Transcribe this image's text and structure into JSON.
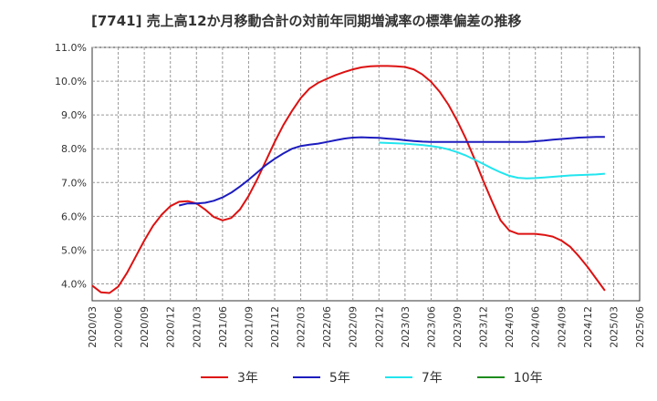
{
  "title": "[7741]  売上高12か月移動合計の対前年同期増減率の標準偏差の推移",
  "chart_data": {
    "type": "line",
    "title": "[7741]  売上高12か月移動合計の対前年同期増減率の標準偏差の推移",
    "xlabel": "",
    "ylabel": "",
    "ylim": [
      3.5,
      11.0
    ],
    "grid": true,
    "legend_position": "bottom",
    "y_ticks": [
      4.0,
      5.0,
      6.0,
      7.0,
      8.0,
      9.0,
      10.0,
      11.0
    ],
    "y_tick_labels": [
      "4.0%",
      "5.0%",
      "6.0%",
      "7.0%",
      "8.0%",
      "9.0%",
      "10.0%",
      "11.0%"
    ],
    "x_ticks": [
      "2020/03",
      "2020/06",
      "2020/09",
      "2020/12",
      "2021/03",
      "2021/06",
      "2021/09",
      "2021/12",
      "2022/03",
      "2022/06",
      "2022/09",
      "2022/12",
      "2023/03",
      "2023/06",
      "2023/09",
      "2023/12",
      "2024/03",
      "2024/06",
      "2024/09",
      "2024/12",
      "2025/03",
      "2025/06"
    ],
    "series": [
      {
        "name": "3年",
        "color": "#dd1111",
        "points": [
          [
            "2020/03",
            3.95
          ],
          [
            "2020/04",
            3.75
          ],
          [
            "2020/05",
            3.73
          ],
          [
            "2020/06",
            3.92
          ],
          [
            "2020/07",
            4.32
          ],
          [
            "2020/08",
            4.8
          ],
          [
            "2020/09",
            5.28
          ],
          [
            "2020/10",
            5.72
          ],
          [
            "2020/11",
            6.05
          ],
          [
            "2020/12",
            6.3
          ],
          [
            "2021/01",
            6.43
          ],
          [
            "2021/02",
            6.45
          ],
          [
            "2021/03",
            6.38
          ],
          [
            "2021/04",
            6.2
          ],
          [
            "2021/05",
            5.98
          ],
          [
            "2021/06",
            5.88
          ],
          [
            "2021/07",
            5.95
          ],
          [
            "2021/08",
            6.2
          ],
          [
            "2021/09",
            6.6
          ],
          [
            "2021/10",
            7.1
          ],
          [
            "2021/11",
            7.65
          ],
          [
            "2021/12",
            8.2
          ],
          [
            "2022/01",
            8.7
          ],
          [
            "2022/02",
            9.12
          ],
          [
            "2022/03",
            9.5
          ],
          [
            "2022/04",
            9.78
          ],
          [
            "2022/05",
            9.95
          ],
          [
            "2022/06",
            10.07
          ],
          [
            "2022/07",
            10.18
          ],
          [
            "2022/08",
            10.27
          ],
          [
            "2022/09",
            10.35
          ],
          [
            "2022/10",
            10.41
          ],
          [
            "2022/11",
            10.44
          ],
          [
            "2022/12",
            10.45
          ],
          [
            "2023/01",
            10.45
          ],
          [
            "2023/02",
            10.44
          ],
          [
            "2023/03",
            10.42
          ],
          [
            "2023/04",
            10.35
          ],
          [
            "2023/05",
            10.2
          ],
          [
            "2023/06",
            9.98
          ],
          [
            "2023/07",
            9.68
          ],
          [
            "2023/08",
            9.3
          ],
          [
            "2023/09",
            8.83
          ],
          [
            "2023/10",
            8.3
          ],
          [
            "2023/11",
            7.7
          ],
          [
            "2023/12",
            7.05
          ],
          [
            "2024/01",
            6.45
          ],
          [
            "2024/02",
            5.88
          ],
          [
            "2024/03",
            5.58
          ],
          [
            "2024/04",
            5.48
          ],
          [
            "2024/05",
            5.48
          ],
          [
            "2024/06",
            5.48
          ],
          [
            "2024/07",
            5.45
          ],
          [
            "2024/08",
            5.4
          ],
          [
            "2024/09",
            5.28
          ],
          [
            "2024/10",
            5.1
          ],
          [
            "2024/11",
            4.82
          ],
          [
            "2024/12",
            4.5
          ],
          [
            "2025/01",
            4.15
          ],
          [
            "2025/02",
            3.8
          ]
        ]
      },
      {
        "name": "5年",
        "color": "#1c1cbf",
        "points": [
          [
            "2021/01",
            6.32
          ],
          [
            "2021/02",
            6.38
          ],
          [
            "2021/03",
            6.38
          ],
          [
            "2021/04",
            6.4
          ],
          [
            "2021/05",
            6.46
          ],
          [
            "2021/06",
            6.56
          ],
          [
            "2021/07",
            6.7
          ],
          [
            "2021/08",
            6.88
          ],
          [
            "2021/09",
            7.08
          ],
          [
            "2021/10",
            7.3
          ],
          [
            "2021/11",
            7.52
          ],
          [
            "2021/12",
            7.7
          ],
          [
            "2022/01",
            7.86
          ],
          [
            "2022/02",
            8.0
          ],
          [
            "2022/03",
            8.08
          ],
          [
            "2022/04",
            8.12
          ],
          [
            "2022/05",
            8.15
          ],
          [
            "2022/06",
            8.2
          ],
          [
            "2022/07",
            8.25
          ],
          [
            "2022/08",
            8.3
          ],
          [
            "2022/09",
            8.33
          ],
          [
            "2022/10",
            8.34
          ],
          [
            "2022/11",
            8.33
          ],
          [
            "2022/12",
            8.32
          ],
          [
            "2023/01",
            8.3
          ],
          [
            "2023/02",
            8.28
          ],
          [
            "2023/03",
            8.25
          ],
          [
            "2023/04",
            8.23
          ],
          [
            "2023/05",
            8.21
          ],
          [
            "2023/06",
            8.2
          ],
          [
            "2023/07",
            8.2
          ],
          [
            "2023/08",
            8.2
          ],
          [
            "2023/09",
            8.2
          ],
          [
            "2023/10",
            8.2
          ],
          [
            "2023/11",
            8.2
          ],
          [
            "2023/12",
            8.2
          ],
          [
            "2024/01",
            8.2
          ],
          [
            "2024/02",
            8.2
          ],
          [
            "2024/03",
            8.2
          ],
          [
            "2024/04",
            8.2
          ],
          [
            "2024/05",
            8.2
          ],
          [
            "2024/06",
            8.22
          ],
          [
            "2024/07",
            8.24
          ],
          [
            "2024/08",
            8.27
          ],
          [
            "2024/09",
            8.29
          ],
          [
            "2024/10",
            8.31
          ],
          [
            "2024/11",
            8.33
          ],
          [
            "2024/12",
            8.34
          ],
          [
            "2025/01",
            8.35
          ],
          [
            "2025/02",
            8.35
          ]
        ]
      },
      {
        "name": "7年",
        "color": "#22e5ee",
        "points": [
          [
            "2022/12",
            8.18
          ],
          [
            "2023/01",
            8.17
          ],
          [
            "2023/02",
            8.16
          ],
          [
            "2023/03",
            8.15
          ],
          [
            "2023/04",
            8.13
          ],
          [
            "2023/05",
            8.11
          ],
          [
            "2023/06",
            8.08
          ],
          [
            "2023/07",
            8.04
          ],
          [
            "2023/08",
            7.98
          ],
          [
            "2023/09",
            7.9
          ],
          [
            "2023/10",
            7.8
          ],
          [
            "2023/11",
            7.68
          ],
          [
            "2023/12",
            7.55
          ],
          [
            "2024/01",
            7.42
          ],
          [
            "2024/02",
            7.3
          ],
          [
            "2024/03",
            7.2
          ],
          [
            "2024/04",
            7.14
          ],
          [
            "2024/05",
            7.12
          ],
          [
            "2024/06",
            7.13
          ],
          [
            "2024/07",
            7.15
          ],
          [
            "2024/08",
            7.17
          ],
          [
            "2024/09",
            7.19
          ],
          [
            "2024/10",
            7.21
          ],
          [
            "2024/11",
            7.22
          ],
          [
            "2024/12",
            7.23
          ],
          [
            "2025/01",
            7.24
          ],
          [
            "2025/02",
            7.26
          ]
        ]
      },
      {
        "name": "10年",
        "color": "#1e8c1e",
        "points": []
      }
    ]
  }
}
